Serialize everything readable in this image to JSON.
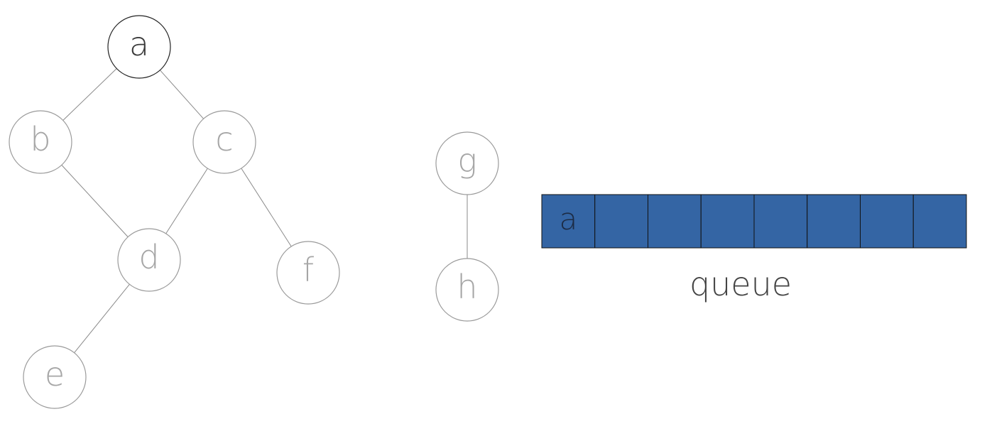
{
  "graph": {
    "nodes": [
      {
        "id": "a",
        "label": "a",
        "visited": true
      },
      {
        "id": "b",
        "label": "b",
        "visited": false
      },
      {
        "id": "c",
        "label": "c",
        "visited": false
      },
      {
        "id": "d",
        "label": "d",
        "visited": false
      },
      {
        "id": "e",
        "label": "e",
        "visited": false
      },
      {
        "id": "f",
        "label": "f",
        "visited": false
      },
      {
        "id": "g",
        "label": "g",
        "visited": false
      },
      {
        "id": "h",
        "label": "h",
        "visited": false
      }
    ],
    "edges": [
      {
        "from": "a",
        "to": "b"
      },
      {
        "from": "a",
        "to": "c"
      },
      {
        "from": "b",
        "to": "d"
      },
      {
        "from": "c",
        "to": "d"
      },
      {
        "from": "c",
        "to": "f"
      },
      {
        "from": "d",
        "to": "e"
      },
      {
        "from": "g",
        "to": "h"
      }
    ]
  },
  "queue": {
    "caption": "queue",
    "cells": [
      "a",
      "",
      "",
      "",
      "",
      "",
      "",
      ""
    ]
  },
  "colors": {
    "visited_fill": "#66ee00",
    "queue_fill": "#3465a4"
  }
}
